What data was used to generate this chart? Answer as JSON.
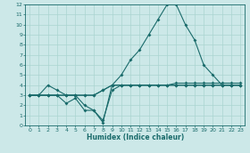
{
  "xlabel": "Humidex (Indice chaleur)",
  "bg_color": "#cce8e8",
  "line_color": "#1a6b6b",
  "grid_color": "#aad4d0",
  "xlim": [
    -0.5,
    23.5
  ],
  "ylim": [
    0,
    12
  ],
  "xticks": [
    0,
    1,
    2,
    3,
    4,
    5,
    6,
    7,
    8,
    9,
    10,
    11,
    12,
    13,
    14,
    15,
    16,
    17,
    18,
    19,
    20,
    21,
    22,
    23
  ],
  "yticks": [
    0,
    1,
    2,
    3,
    4,
    5,
    6,
    7,
    8,
    9,
    10,
    11,
    12
  ],
  "line_max_x": [
    0,
    1,
    2,
    3,
    4,
    5,
    6,
    7,
    8,
    9,
    10,
    11,
    12,
    13,
    14,
    15,
    16,
    17,
    18,
    19,
    20,
    21,
    22,
    23
  ],
  "line_max_y": [
    3,
    3,
    4,
    3.5,
    3,
    3,
    2,
    1.5,
    0.3,
    4,
    5,
    6.5,
    7.5,
    9,
    10.5,
    12,
    12,
    10,
    8.5,
    6,
    5,
    4,
    4,
    4
  ],
  "line_mean_x": [
    0,
    1,
    2,
    3,
    4,
    5,
    6,
    7,
    8,
    9,
    10,
    11,
    12,
    13,
    14,
    15,
    16,
    17,
    18,
    19,
    20,
    21,
    22,
    23
  ],
  "line_mean_y": [
    3,
    3,
    3,
    3,
    3,
    3,
    3,
    3,
    3.5,
    4,
    4,
    4,
    4,
    4,
    4,
    4,
    4.2,
    4.2,
    4.2,
    4.2,
    4.2,
    4.2,
    4.2,
    4.2
  ],
  "line_mmin_x": [
    0,
    1,
    2,
    3,
    4,
    5,
    6,
    7,
    8,
    9,
    10,
    11,
    12,
    13,
    14,
    15,
    16,
    17,
    18,
    19,
    20,
    21,
    22,
    23
  ],
  "line_mmin_y": [
    3,
    3,
    3,
    3,
    2.2,
    2.7,
    1.5,
    1.5,
    0.5,
    3.5,
    4,
    4,
    4,
    4,
    4,
    4,
    4,
    4,
    4,
    4,
    4,
    4,
    4,
    4
  ],
  "line_min_x": [
    0,
    1,
    2,
    3,
    4,
    5,
    6,
    7,
    8,
    9,
    10,
    11,
    12,
    13,
    14,
    15,
    16,
    17,
    18,
    19,
    20,
    21,
    22,
    23
  ],
  "line_min_y": [
    3,
    3,
    3,
    3,
    3,
    3,
    3,
    3,
    3.5,
    4,
    4,
    4,
    4,
    4,
    4,
    4,
    4,
    4,
    4,
    4,
    4,
    4,
    4,
    4
  ]
}
